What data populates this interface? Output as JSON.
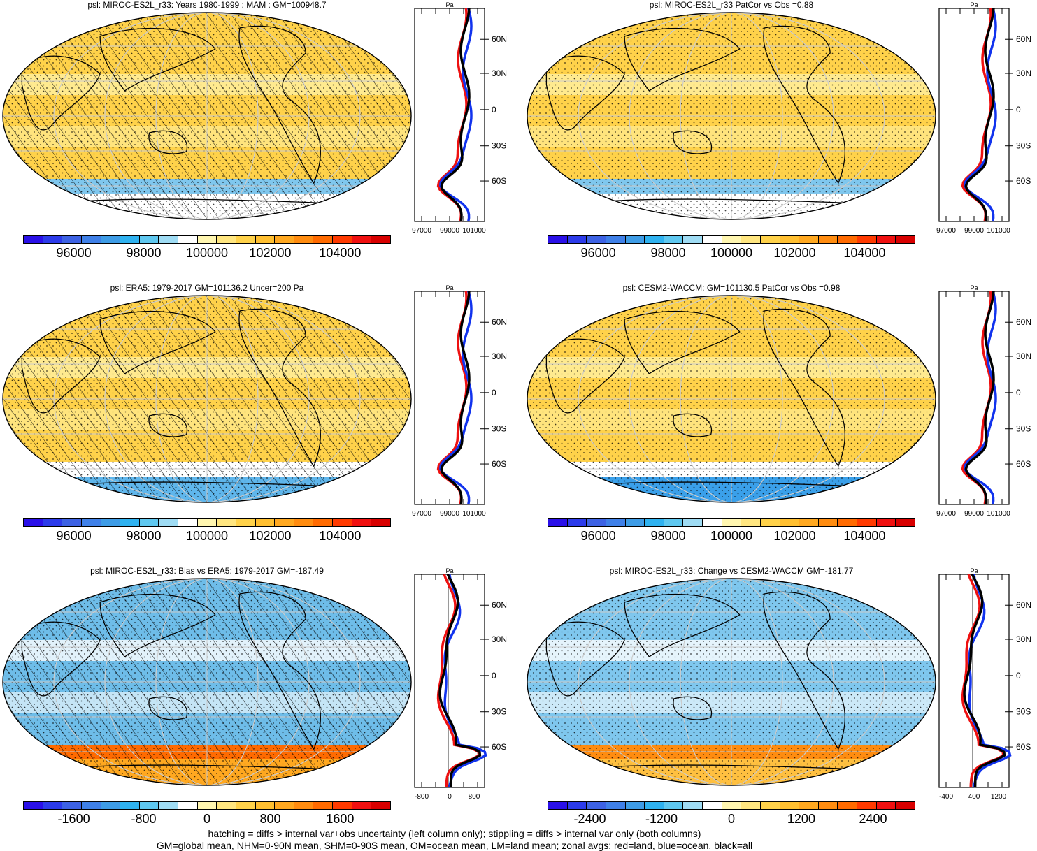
{
  "panels": [
    {
      "id": "p1",
      "title": "psl: MIROC-ES2L_r33: Years 1980-1999 : MAM : GM=100948.7",
      "colorbar": {
        "ticks": [
          "96000",
          "98000",
          "100000",
          "102000",
          "104000"
        ]
      },
      "zonal": {
        "xticks": [
          "97000",
          "99000",
          "101000"
        ],
        "unit": "Pa"
      }
    },
    {
      "id": "p2",
      "title": "psl: MIROC-ES2L_r33 PatCor vs Obs =0.88",
      "colorbar": {
        "ticks": [
          "96000",
          "98000",
          "100000",
          "102000",
          "104000"
        ]
      },
      "zonal": {
        "xticks": [
          "97000",
          "99000",
          "101000"
        ],
        "unit": "Pa"
      }
    },
    {
      "id": "p3",
      "title": "psl: ERA5: 1979-2017 GM=101136.2 Uncer=200 Pa",
      "colorbar": {
        "ticks": [
          "96000",
          "98000",
          "100000",
          "102000",
          "104000"
        ]
      },
      "zonal": {
        "xticks": [
          "97000",
          "99000",
          "101000"
        ],
        "unit": "Pa"
      }
    },
    {
      "id": "p4",
      "title": "psl: CESM2-WACCM: GM=101130.5 PatCor vs Obs =0.98",
      "colorbar": {
        "ticks": [
          "96000",
          "98000",
          "100000",
          "102000",
          "104000"
        ]
      },
      "zonal": {
        "xticks": [
          "97000",
          "99000",
          "101000"
        ],
        "unit": "Pa"
      }
    },
    {
      "id": "p5",
      "title": "psl: MIROC-ES2L_r33: Bias vs ERA5: 1979-2017 GM=-187.49",
      "colorbar": {
        "ticks": [
          "-1600",
          "-800",
          "0",
          "800",
          "1600"
        ]
      },
      "zonal": {
        "xticks": [
          "-800",
          "0",
          "800"
        ],
        "unit": "Pa"
      }
    },
    {
      "id": "p6",
      "title": "psl: MIROC-ES2L_r33: Change vs CESM2-WACCM GM=-181.77",
      "colorbar": {
        "ticks": [
          "-2400",
          "-1200",
          "0",
          "1200",
          "2400"
        ]
      },
      "zonal": {
        "xticks": [
          "-400",
          "400",
          "1200"
        ],
        "unit": "Pa"
      }
    }
  ],
  "lat_ticks": [
    "60N",
    "30N",
    "0",
    "30S",
    "60S"
  ],
  "colorbar_colors": [
    "#2a10e8",
    "#2c3bea",
    "#3d62e4",
    "#3f80e8",
    "#3e9ce6",
    "#2fb2f0",
    "#5fc8f0",
    "#9fdcf4",
    "#ffffff",
    "#fff6b0",
    "#ffe680",
    "#ffd24a",
    "#ffbf30",
    "#ffa820",
    "#ff8c10",
    "#ff6a00",
    "#ff3a00",
    "#f01010",
    "#d80000"
  ],
  "footer": {
    "line1": "hatching = diffs > internal var+obs uncertainty (left column only); stippling = diffs > internal var only (both columns)",
    "line2": "GM=global mean, NHM=0-90N mean, SHM=0-90S mean, OM=ocean mean, LM=land mean; zonal avgs: red=land, blue=ocean, black=all"
  }
}
